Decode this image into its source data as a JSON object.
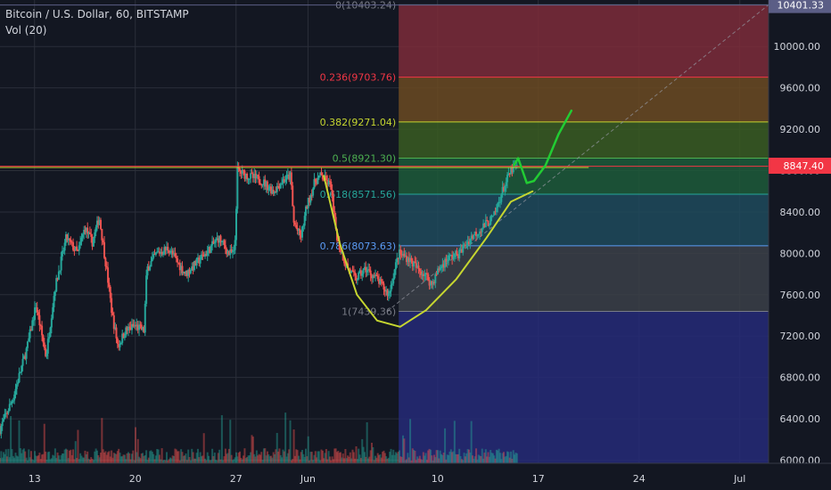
{
  "header": {
    "symbol_line": "Bitcoin / U.S. Dollar, 60, BITSTAMP",
    "volume_line": "Vol (20)"
  },
  "chart_data": {
    "type": "candlestick",
    "symbol": "Bitcoin / U.S. Dollar",
    "interval": "60",
    "exchange": "BITSTAMP",
    "price_axis": {
      "ticks": [
        6000,
        6400,
        6800,
        7200,
        7600,
        8000,
        8400,
        8800,
        9200,
        9600,
        10000
      ],
      "tick_labels": [
        "6000.00",
        "6400.00",
        "6800.00",
        "7200.00",
        "7600.00",
        "8000.00",
        "8400.00",
        "8800.00",
        "9200.00",
        "9600.00",
        "10000.00"
      ],
      "range": [
        5970,
        10450
      ],
      "current_price": 8847.4,
      "current_price_label": "8847.40",
      "top_marker_price": 10401.33,
      "top_marker_label": "10401.33"
    },
    "time_axis": {
      "tick_labels": [
        "13",
        "20",
        "27",
        "Jun",
        "10",
        "17",
        "24",
        "Jul"
      ],
      "tick_days": [
        13,
        20,
        27,
        32,
        41,
        48,
        55,
        62
      ],
      "day_range": [
        10.6,
        64
      ]
    },
    "price_path": [
      [
        10.6,
        6300
      ],
      [
        11.5,
        6600
      ],
      [
        12.5,
        7100
      ],
      [
        13.1,
        7500
      ],
      [
        13.8,
        7000
      ],
      [
        14.4,
        7650
      ],
      [
        15.2,
        8150
      ],
      [
        16.0,
        8000
      ],
      [
        16.5,
        8250
      ],
      [
        17.0,
        8100
      ],
      [
        17.5,
        8350
      ],
      [
        18.0,
        7850
      ],
      [
        18.4,
        7400
      ],
      [
        18.8,
        7100
      ],
      [
        19.3,
        7250
      ],
      [
        20.0,
        7300
      ],
      [
        20.6,
        7250
      ],
      [
        20.8,
        7850
      ],
      [
        21.5,
        8000
      ],
      [
        22.3,
        8050
      ],
      [
        23.0,
        7900
      ],
      [
        23.5,
        7800
      ],
      [
        24.2,
        7900
      ],
      [
        24.9,
        8000
      ],
      [
        25.8,
        8150
      ],
      [
        26.5,
        8000
      ],
      [
        26.9,
        8000
      ],
      [
        27.1,
        8800
      ],
      [
        27.8,
        8750
      ],
      [
        28.8,
        8700
      ],
      [
        29.6,
        8600
      ],
      [
        30.2,
        8700
      ],
      [
        30.8,
        8750
      ],
      [
        31.0,
        8300
      ],
      [
        31.5,
        8150
      ],
      [
        31.9,
        8450
      ],
      [
        32.5,
        8700
      ],
      [
        32.9,
        8750
      ],
      [
        33.6,
        8650
      ],
      [
        33.8,
        8350
      ],
      [
        34.1,
        8100
      ],
      [
        34.6,
        7900
      ],
      [
        35.3,
        7750
      ],
      [
        36.0,
        7850
      ],
      [
        36.8,
        7750
      ],
      [
        37.6,
        7600
      ],
      [
        38.3,
        8000
      ],
      [
        39.0,
        7950
      ],
      [
        39.6,
        7850
      ],
      [
        40.1,
        7800
      ],
      [
        40.6,
        7700
      ],
      [
        41.1,
        7850
      ],
      [
        41.7,
        7950
      ],
      [
        42.5,
        8000
      ],
      [
        43.3,
        8150
      ],
      [
        44.1,
        8250
      ],
      [
        44.9,
        8350
      ],
      [
        45.5,
        8600
      ],
      [
        46.1,
        8800
      ],
      [
        46.6,
        8850
      ]
    ],
    "fibonacci_retracement": {
      "day_range": [
        38.3,
        64
      ],
      "high_price": 10403.24,
      "low_price": 7439.36,
      "levels": [
        {
          "ratio": "0",
          "price": 10403.24,
          "label": "0(10403.24)",
          "color": "#787b86",
          "fill": "#7d2b3a"
        },
        {
          "ratio": "0.236",
          "price": 9703.76,
          "label": "0.236(9703.76)",
          "color": "#f23645",
          "fill": "#6b4a22"
        },
        {
          "ratio": "0.382",
          "price": 9271.04,
          "label": "0.382(9271.04)",
          "color": "#c6d630",
          "fill": "#3a5c22"
        },
        {
          "ratio": "0.5",
          "price": 8921.3,
          "label": "0.5(8921.30)",
          "color": "#4caf50",
          "fill": "#1d5a3a"
        },
        {
          "ratio": "0.618",
          "price": 8571.56,
          "label": "0.618(8571.56)",
          "color": "#26a69a",
          "fill": "#1e4a5c"
        },
        {
          "ratio": "0.786",
          "price": 8073.63,
          "label": "0.786(8073.63)",
          "color": "#5b9cf6",
          "fill": "#3b3f48"
        },
        {
          "ratio": "1",
          "price": 7439.36,
          "label": "1(7439.36)",
          "color": "#787b86",
          "fill": "#262a78"
        }
      ]
    },
    "annotations": {
      "horizontal_lines": [
        {
          "price": 8825,
          "color": "#f23645"
        },
        {
          "price": 8830,
          "color": "#c6d630"
        }
      ],
      "cup_curve_color": "#c6d630",
      "forecast_arrow_color": "#22cc33",
      "trend_line_color": "#9598a1"
    },
    "colors": {
      "background": "#131722",
      "up": "#26a69a",
      "down": "#ef5350",
      "grid": "#2a2e39",
      "axis_text": "#d1d4dc",
      "price_tag": "#f23645",
      "top_tag": "#5b5e86"
    },
    "indicators": [
      "Vol (20)"
    ]
  }
}
